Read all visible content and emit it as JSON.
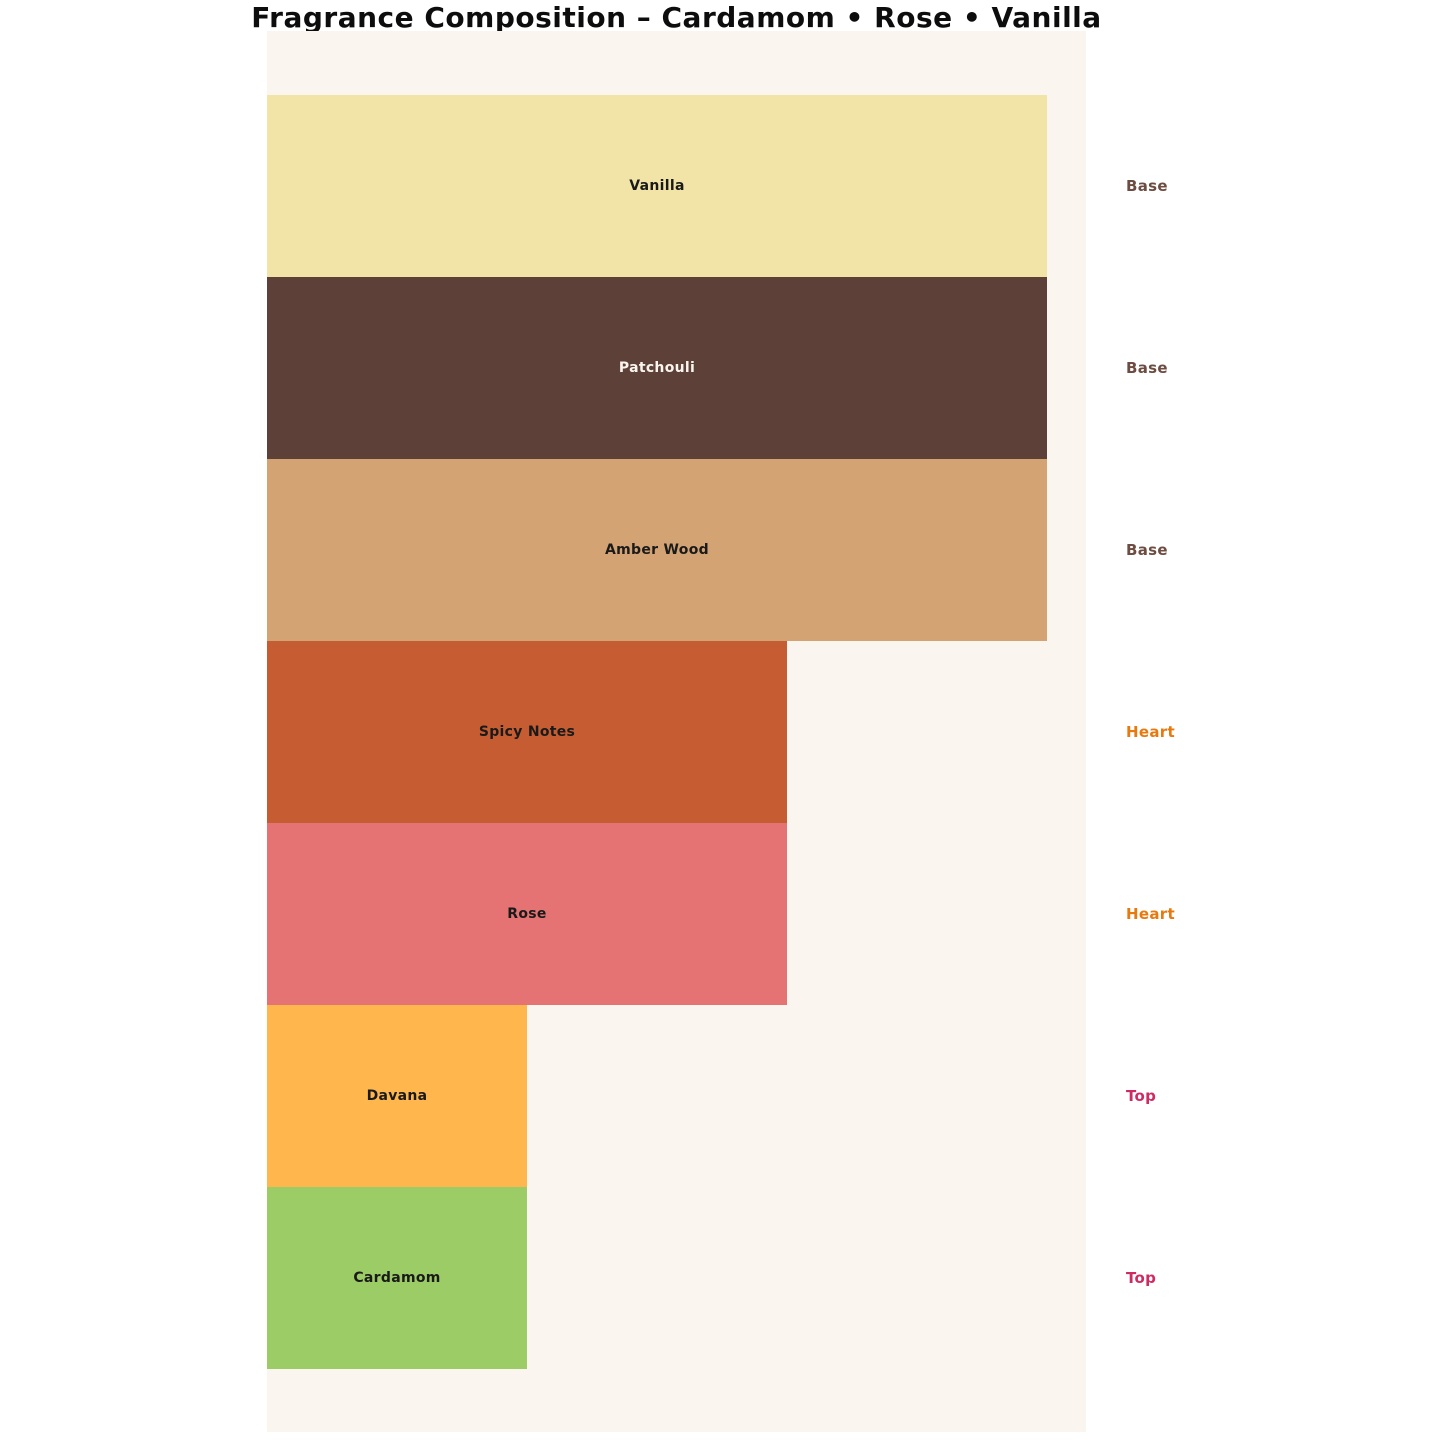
{
  "title": "Fragrance Composition – Cardamom • Rose • Vanilla",
  "chart_data": {
    "type": "bar",
    "orientation": "horizontal",
    "title": "Fragrance Composition – Cardamom • Rose • Vanilla",
    "categories": [
      "Vanilla",
      "Patchouli",
      "Amber Wood",
      "Spicy Notes",
      "Rose",
      "Davana",
      "Cardamom"
    ],
    "values": [
      3,
      3,
      3,
      2,
      2,
      1,
      1
    ],
    "value_note": "relative bar widths, Base:Heart:Top = 3:2:1, no numeric axis shown",
    "groups": [
      "Base",
      "Base",
      "Base",
      "Heart",
      "Heart",
      "Top",
      "Top"
    ],
    "bar_colors": [
      "#F2E4A6",
      "#5D4037",
      "#D4A373",
      "#C65D32",
      "#E57373",
      "#FFB74D",
      "#9CCC65"
    ],
    "bar_label_colors": [
      "#1A1A1A",
      "#FAF5EF",
      "#1A1A1A",
      "#1A1A1A",
      "#1A1A1A",
      "#1A1A1A",
      "#1A1A1A"
    ],
    "group_label_colors": {
      "Base": "#6D4C41",
      "Heart": "#E8790F",
      "Top": "#D02A63"
    },
    "xlim": [
      0,
      3.15
    ],
    "bar_thickness": 1.0,
    "grid": false,
    "axes_visible": false,
    "legend_position": "none",
    "plot_background": "#FAF5EF",
    "page_background": "#FFFFFF",
    "title_color": "#0D0D0D"
  }
}
